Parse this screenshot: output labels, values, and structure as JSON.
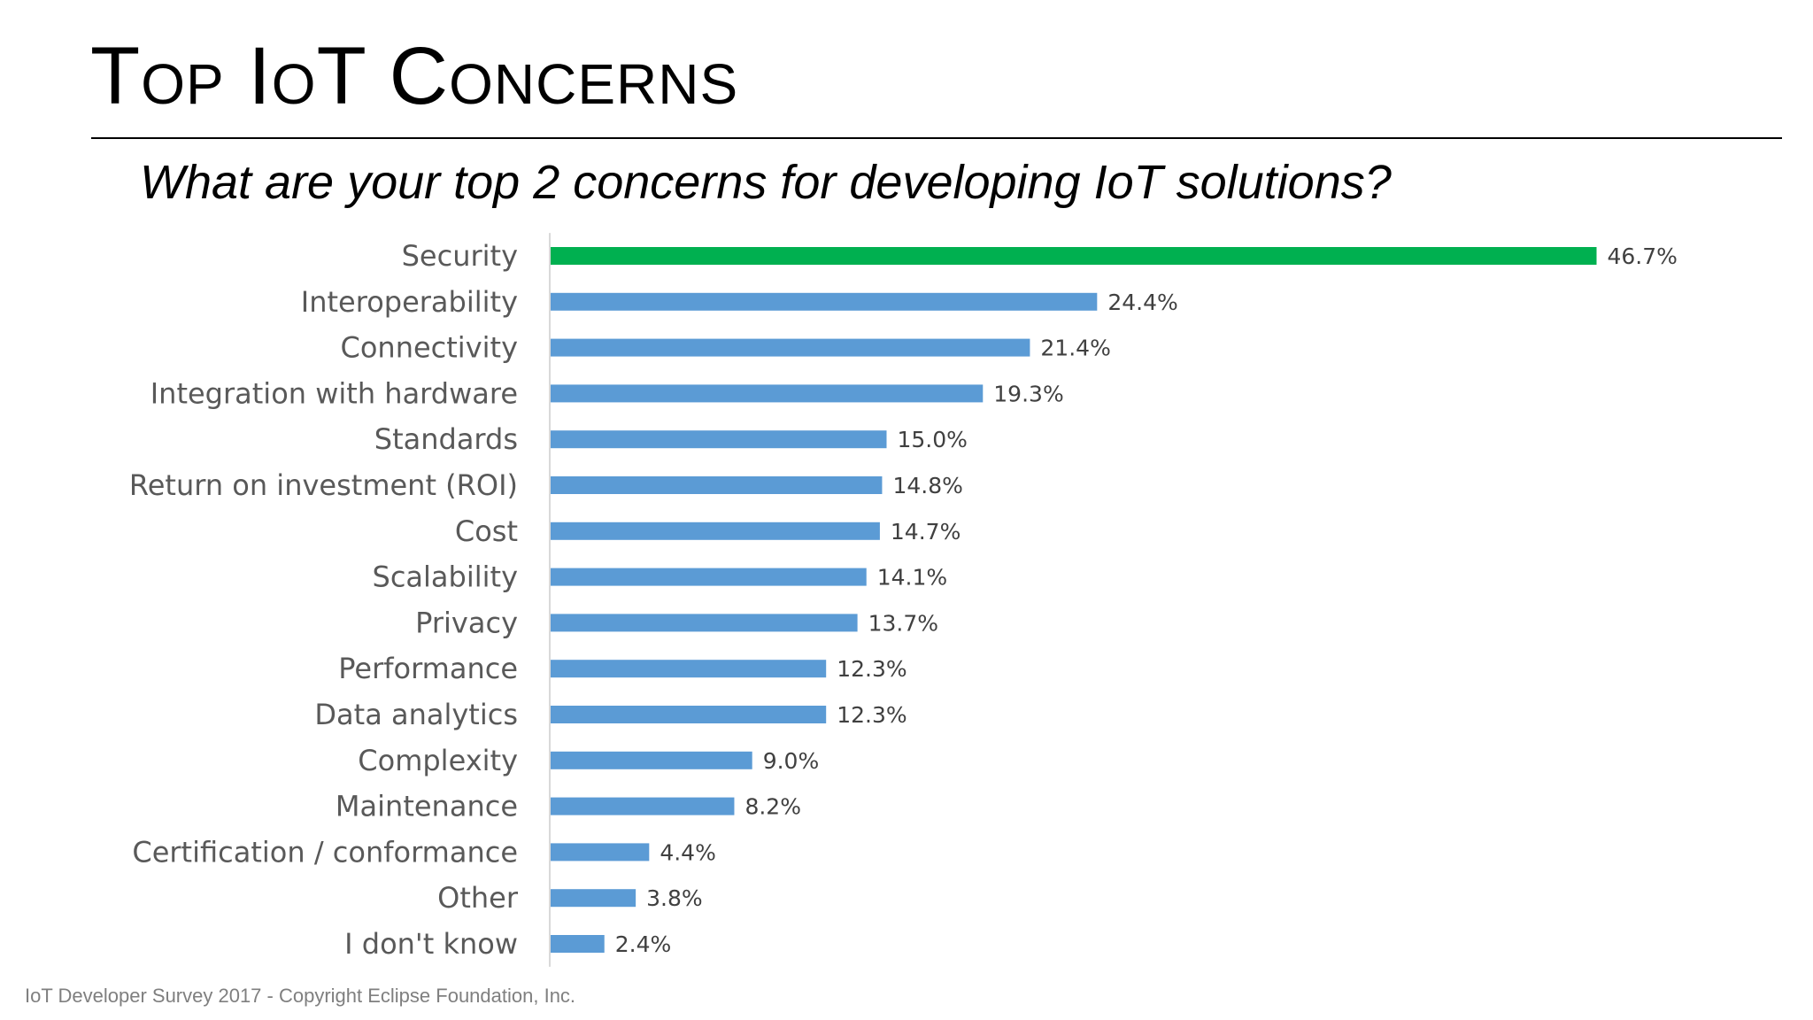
{
  "slide": {
    "title": "Top IoT Concerns",
    "question": "What are your top 2 concerns for developing IoT solutions?",
    "footer": "IoT Developer Survey 2017 - Copyright Eclipse Foundation, Inc."
  },
  "colors": {
    "highlight_bar": "#00b050",
    "default_bar": "#5b9bd5",
    "axis_line": "#d9d9d9"
  },
  "chart_data": {
    "type": "bar",
    "orientation": "horizontal",
    "title": "",
    "xlabel": "",
    "ylabel": "",
    "xlim": [
      0,
      50
    ],
    "grid": false,
    "legend": "none",
    "categories": [
      "Security",
      "Interoperability",
      "Connectivity",
      "Integration with hardware",
      "Standards",
      "Return on investment (ROI)",
      "Cost",
      "Scalability",
      "Privacy",
      "Performance",
      "Data analytics",
      "Complexity",
      "Maintenance",
      "Certification / conformance",
      "Other",
      "I don't know"
    ],
    "values": [
      46.7,
      24.4,
      21.4,
      19.3,
      15.0,
      14.8,
      14.7,
      14.1,
      13.7,
      12.3,
      12.3,
      9.0,
      8.2,
      4.4,
      3.8,
      2.4
    ],
    "value_labels": [
      "46.7%",
      "24.4%",
      "21.4%",
      "19.3%",
      "15.0%",
      "14.8%",
      "14.7%",
      "14.1%",
      "13.7%",
      "12.3%",
      "12.3%",
      "9.0%",
      "8.2%",
      "4.4%",
      "3.8%",
      "2.4%"
    ],
    "highlight_index": 0
  }
}
